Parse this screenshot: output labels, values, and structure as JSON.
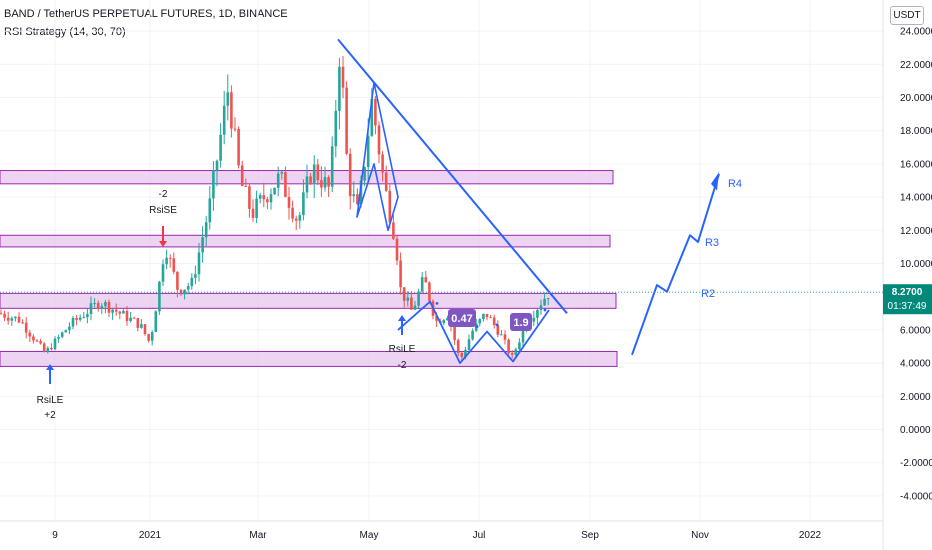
{
  "header": {
    "symbol_line": "BAND / TetherUS PERPETUAL FUTURES, 1D, BINANCE",
    "indicator_line": "RSI Strategy (14, 30, 70)"
  },
  "currency_unit": "USDT",
  "price_badge": {
    "price": "8.2700",
    "countdown": "01:37:49"
  },
  "colors": {
    "up": "#26a69a",
    "down": "#ef5350",
    "trend": "#2962ff",
    "zone_fill": "#e6c6ee",
    "zone_stroke": "#9c27b0",
    "badge_bg": "#00897b",
    "label_purple": "#7e57c2"
  },
  "chart_data": {
    "type": "candlestick",
    "x_ticks": [
      "9",
      "2021",
      "Mar",
      "May",
      "Jul",
      "Sep",
      "Nov",
      "2022"
    ],
    "y_ticks": [
      "24.0000",
      "22.0000",
      "20.0000",
      "18.0000",
      "16.0000",
      "14.0000",
      "12.0000",
      "10.0000",
      "6.0000",
      "4.0000",
      "2.0000",
      "0.0000",
      "-2.0000",
      "-4.0000"
    ],
    "ylim": [
      -4.9,
      25.2
    ],
    "current_price": 8.27,
    "zones": [
      {
        "low": 14.8,
        "high": 15.6
      },
      {
        "low": 11.0,
        "high": 11.7
      },
      {
        "low": 7.3,
        "high": 8.2
      },
      {
        "low": 3.8,
        "high": 4.7
      }
    ],
    "signals": [
      {
        "label": "RsiLE",
        "qty": "+2",
        "side": "long"
      },
      {
        "label": "RsiSE",
        "qty": "-2",
        "side": "short"
      },
      {
        "label": "RsiLE",
        "qty": "-2",
        "side": "long"
      }
    ],
    "value_labels": [
      "0.47",
      "1.9"
    ],
    "projection_labels": [
      "R4",
      "R3",
      "R2"
    ]
  }
}
